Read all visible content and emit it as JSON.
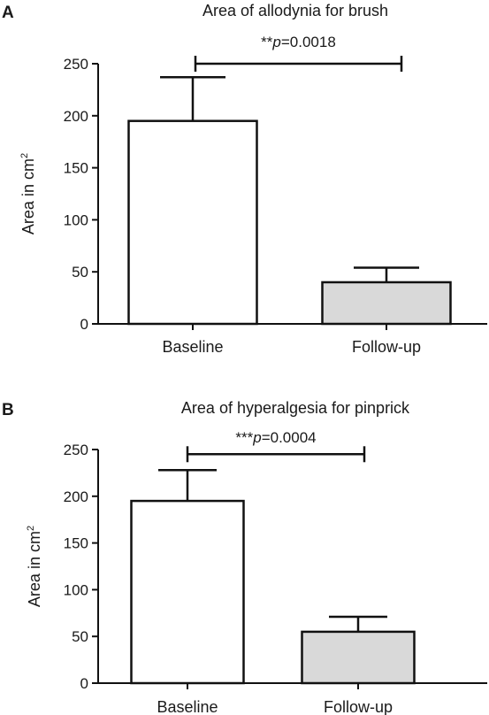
{
  "chart_data": [
    {
      "type": "bar",
      "panel_label": "A",
      "title": "Area of allodynia for brush",
      "ylabel": "Area in cm",
      "ylabel_superscript": "2",
      "categories": [
        "Baseline",
        "Follow-up"
      ],
      "values": [
        195,
        40
      ],
      "error_upper": [
        237,
        54
      ],
      "bar_colors": [
        "#ffffff",
        "#d9d9d9"
      ],
      "ylim": [
        0,
        250
      ],
      "yticks": [
        0,
        50,
        100,
        150,
        200,
        250
      ],
      "significance": {
        "stars": "**",
        "p_symbol": "p",
        "p_value": "=0.0018",
        "y": 250
      }
    },
    {
      "type": "bar",
      "panel_label": "B",
      "title": "Area of hyperalgesia for pinprick",
      "ylabel": "Area in cm",
      "ylabel_superscript": "2",
      "categories": [
        "Baseline",
        "Follow-up"
      ],
      "values": [
        195,
        55
      ],
      "error_upper": [
        228,
        71
      ],
      "bar_colors": [
        "#ffffff",
        "#d9d9d9"
      ],
      "ylim": [
        0,
        250
      ],
      "yticks": [
        0,
        50,
        100,
        150,
        200,
        250
      ],
      "significance": {
        "stars": "***",
        "p_symbol": "p",
        "p_value": "=0.0004",
        "y": 245
      }
    }
  ]
}
